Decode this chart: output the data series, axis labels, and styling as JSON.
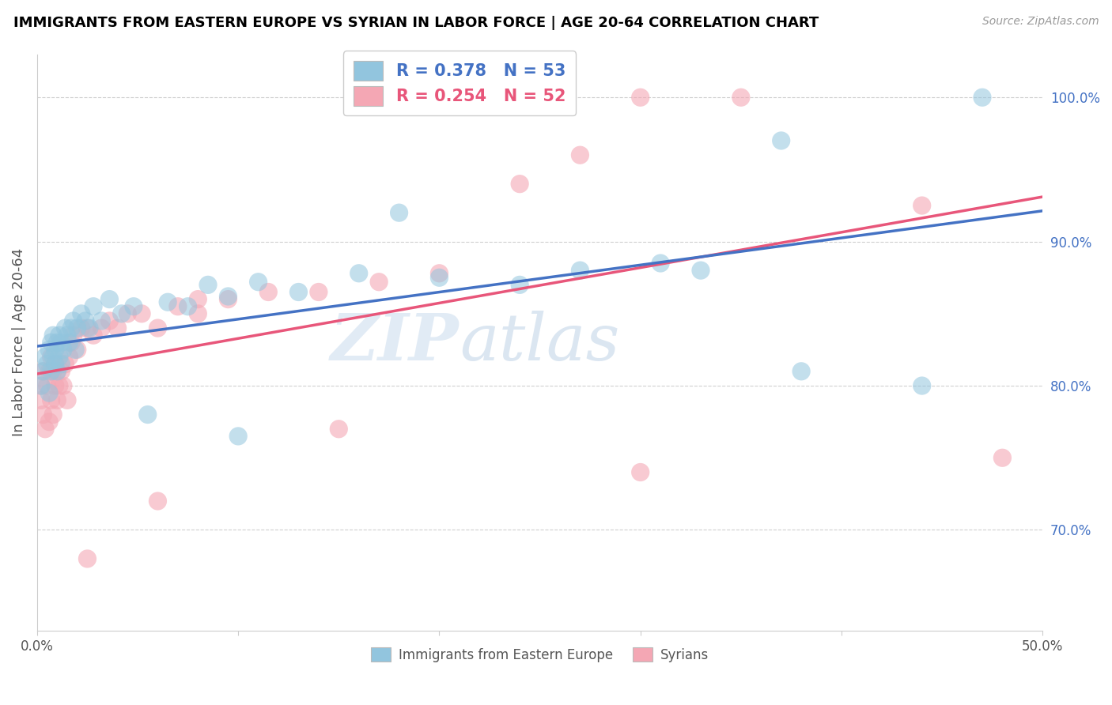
{
  "title": "IMMIGRANTS FROM EASTERN EUROPE VS SYRIAN IN LABOR FORCE | AGE 20-64 CORRELATION CHART",
  "source": "Source: ZipAtlas.com",
  "ylabel": "In Labor Force | Age 20-64",
  "xlim": [
    0.0,
    0.5
  ],
  "ylim": [
    0.63,
    1.03
  ],
  "x_ticks": [
    0.0,
    0.1,
    0.2,
    0.3,
    0.4,
    0.5
  ],
  "x_tick_labels": [
    "0.0%",
    "",
    "",
    "",
    "",
    "50.0%"
  ],
  "y_ticks_right": [
    0.7,
    0.8,
    0.9,
    1.0
  ],
  "y_tick_labels_right": [
    "70.0%",
    "80.0%",
    "90.0%",
    "100.0%"
  ],
  "R_blue": 0.378,
  "N_blue": 53,
  "R_pink": 0.254,
  "N_pink": 52,
  "blue_color": "#92c5de",
  "pink_color": "#f4a7b4",
  "blue_line_color": "#4472c4",
  "pink_line_color": "#e8567a",
  "watermark_zip": "ZIP",
  "watermark_atlas": "atlas",
  "legend_label_blue": "Immigrants from Eastern Europe",
  "legend_label_pink": "Syrians",
  "blue_x": [
    0.002,
    0.003,
    0.004,
    0.005,
    0.006,
    0.006,
    0.007,
    0.007,
    0.008,
    0.008,
    0.009,
    0.009,
    0.01,
    0.01,
    0.011,
    0.011,
    0.012,
    0.012,
    0.013,
    0.014,
    0.015,
    0.016,
    0.017,
    0.018,
    0.019,
    0.02,
    0.022,
    0.024,
    0.026,
    0.028,
    0.032,
    0.036,
    0.042,
    0.048,
    0.055,
    0.065,
    0.075,
    0.085,
    0.095,
    0.11,
    0.13,
    0.16,
    0.2,
    0.24,
    0.27,
    0.31,
    0.33,
    0.37,
    0.44,
    0.47,
    0.38,
    0.1,
    0.18
  ],
  "blue_y": [
    0.8,
    0.81,
    0.82,
    0.815,
    0.825,
    0.795,
    0.83,
    0.81,
    0.82,
    0.835,
    0.815,
    0.825,
    0.83,
    0.81,
    0.82,
    0.835,
    0.83,
    0.815,
    0.825,
    0.84,
    0.835,
    0.83,
    0.84,
    0.845,
    0.825,
    0.84,
    0.85,
    0.845,
    0.84,
    0.855,
    0.845,
    0.86,
    0.85,
    0.855,
    0.78,
    0.858,
    0.855,
    0.87,
    0.862,
    0.872,
    0.865,
    0.878,
    0.875,
    0.87,
    0.88,
    0.885,
    0.88,
    0.97,
    0.8,
    1.0,
    0.81,
    0.765,
    0.92
  ],
  "pink_x": [
    0.002,
    0.002,
    0.003,
    0.003,
    0.004,
    0.005,
    0.006,
    0.006,
    0.007,
    0.007,
    0.008,
    0.008,
    0.009,
    0.009,
    0.01,
    0.01,
    0.011,
    0.012,
    0.013,
    0.014,
    0.015,
    0.016,
    0.017,
    0.018,
    0.02,
    0.022,
    0.025,
    0.028,
    0.032,
    0.036,
    0.04,
    0.045,
    0.052,
    0.06,
    0.07,
    0.08,
    0.095,
    0.115,
    0.14,
    0.17,
    0.2,
    0.24,
    0.27,
    0.3,
    0.35,
    0.44,
    0.48,
    0.3,
    0.15,
    0.08,
    0.06,
    0.025
  ],
  "pink_y": [
    0.79,
    0.8,
    0.78,
    0.81,
    0.77,
    0.8,
    0.775,
    0.81,
    0.79,
    0.82,
    0.78,
    0.81,
    0.8,
    0.815,
    0.79,
    0.81,
    0.8,
    0.81,
    0.8,
    0.815,
    0.79,
    0.82,
    0.83,
    0.835,
    0.825,
    0.84,
    0.84,
    0.835,
    0.84,
    0.845,
    0.84,
    0.85,
    0.85,
    0.84,
    0.855,
    0.86,
    0.86,
    0.865,
    0.865,
    0.872,
    0.878,
    0.94,
    0.96,
    1.0,
    1.0,
    0.925,
    0.75,
    0.74,
    0.77,
    0.85,
    0.72,
    0.68
  ]
}
